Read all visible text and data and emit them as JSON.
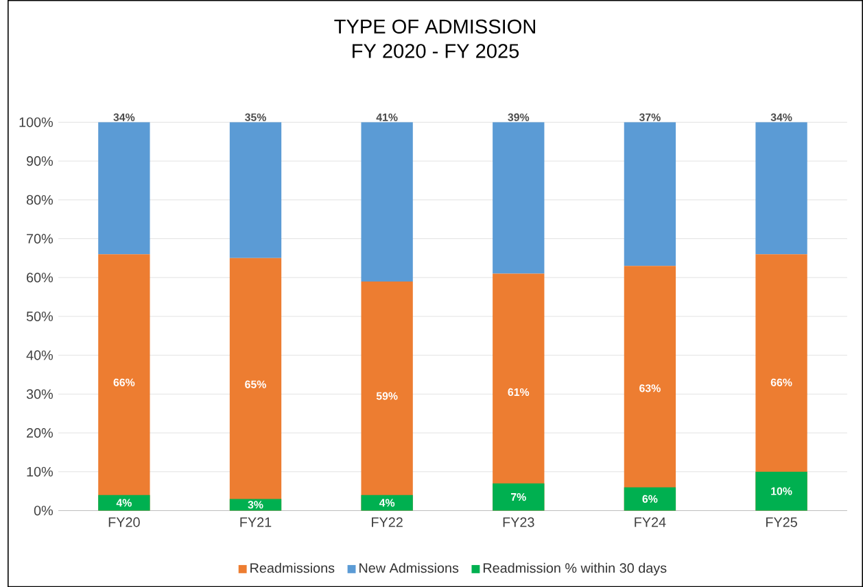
{
  "chart_data": {
    "type": "bar",
    "title": "TYPE OF ADMISSION",
    "subtitle": "FY 2020 - FY 2025",
    "categories": [
      "FY20",
      "FY21",
      "FY22",
      "FY23",
      "FY24",
      "FY25"
    ],
    "stacked": true,
    "series": [
      {
        "name": "Readmissions",
        "color": "#ed7d31",
        "values": [
          66,
          65,
          59,
          61,
          63,
          66
        ],
        "value_labels": [
          "66%",
          "65%",
          "59%",
          "61%",
          "63%",
          "66%"
        ]
      },
      {
        "name": "New Admissions",
        "color": "#5b9bd5",
        "values": [
          34,
          35,
          41,
          39,
          37,
          34
        ],
        "value_labels": [
          "34%",
          "35%",
          "41%",
          "39%",
          "37%",
          "34%"
        ]
      },
      {
        "name": "Readmission % within 30 days",
        "color": "#00b050",
        "axis": "y2",
        "values": [
          4,
          3,
          4,
          7,
          6,
          10
        ],
        "value_labels": [
          "4%",
          "3%",
          "4%",
          "7%",
          "6%",
          "10%"
        ]
      }
    ],
    "ylim": [
      0,
      100
    ],
    "yticks": [
      {
        "value": 0,
        "label": "0%"
      },
      {
        "value": 10,
        "label": "10%"
      },
      {
        "value": 20,
        "label": "20%"
      },
      {
        "value": 30,
        "label": "30%"
      },
      {
        "value": 40,
        "label": "40%"
      },
      {
        "value": 50,
        "label": "50%"
      },
      {
        "value": 60,
        "label": "60%"
      },
      {
        "value": 70,
        "label": "70%"
      },
      {
        "value": 80,
        "label": "80%"
      },
      {
        "value": 90,
        "label": "90%"
      },
      {
        "value": 100,
        "label": "100%"
      }
    ],
    "y2lim": [
      0,
      100
    ],
    "grid": "y",
    "legend": "bottom"
  }
}
